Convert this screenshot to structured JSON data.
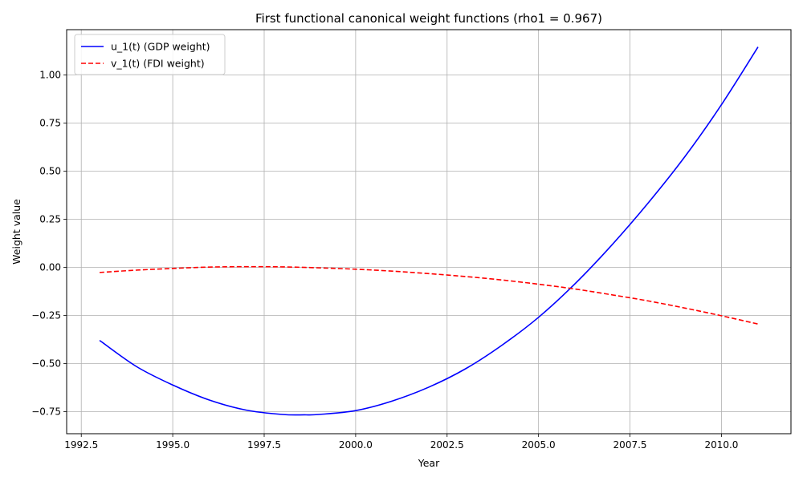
{
  "chart_data": {
    "type": "line",
    "title": "First functional canonical weight functions (rho1 = 0.967)",
    "xlabel": "Year",
    "ylabel": "Weight value",
    "xlim": [
      1992.1,
      2011.9
    ],
    "ylim": [
      -0.865,
      1.235
    ],
    "xticks": [
      1992.5,
      1995.0,
      1997.5,
      2000.0,
      2002.5,
      2005.0,
      2007.5,
      2010.0
    ],
    "xtick_labels": [
      "1992.5",
      "1995.0",
      "1997.5",
      "2000.0",
      "2002.5",
      "2005.0",
      "2007.5",
      "2010.0"
    ],
    "yticks": [
      -0.75,
      -0.5,
      -0.25,
      0.0,
      0.25,
      0.5,
      0.75,
      1.0
    ],
    "ytick_labels": [
      "−0.75",
      "−0.50",
      "−0.25",
      "0.00",
      "0.25",
      "0.50",
      "0.75",
      "1.00"
    ],
    "grid": true,
    "legend_position": "upper-left",
    "series": [
      {
        "name": "u_1(t) (GDP weight)",
        "color": "#0000ff",
        "style": "solid",
        "x": [
          1993,
          1994,
          1995,
          1996,
          1997,
          1998,
          1998.6,
          1999,
          2000,
          2001,
          2002,
          2003,
          2004,
          2005,
          2006,
          2007,
          2008,
          2009,
          2010,
          2011
        ],
        "y": [
          -0.38,
          -0.515,
          -0.612,
          -0.69,
          -0.742,
          -0.765,
          -0.767,
          -0.765,
          -0.745,
          -0.695,
          -0.623,
          -0.528,
          -0.405,
          -0.26,
          -0.085,
          0.115,
          0.335,
          0.575,
          0.845,
          1.145
        ]
      },
      {
        "name": "v_1(t) (FDI weight)",
        "color": "#ff0000",
        "style": "dashed",
        "x": [
          1993,
          1994,
          1995,
          1996,
          1997,
          1998,
          1999,
          2000,
          2001,
          2002,
          2003,
          2004,
          2005,
          2006,
          2007,
          2008,
          2009,
          2010,
          2011
        ],
        "y": [
          -0.027,
          -0.015,
          -0.006,
          0.001,
          0.003,
          0.002,
          -0.003,
          -0.01,
          -0.02,
          -0.033,
          -0.048,
          -0.066,
          -0.088,
          -0.113,
          -0.143,
          -0.175,
          -0.212,
          -0.252,
          -0.295
        ]
      }
    ]
  }
}
